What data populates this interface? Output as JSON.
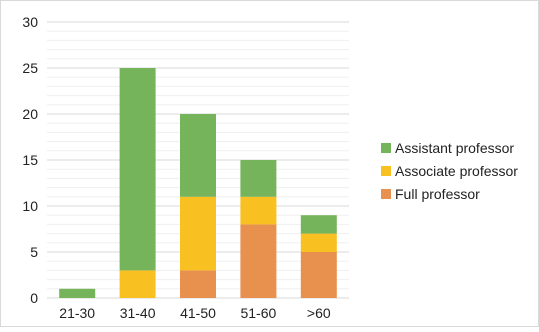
{
  "chart_data": {
    "type": "bar",
    "stacked": true,
    "title": "",
    "xlabel": "",
    "ylabel": "",
    "categories": [
      "21-30",
      "31-40",
      "41-50",
      "51-60",
      ">60"
    ],
    "series": [
      {
        "name": "Full professor",
        "color": "#e8914f",
        "values": [
          0,
          0,
          3,
          8,
          5
        ]
      },
      {
        "name": "Associate professor",
        "color": "#f8c021",
        "values": [
          0,
          3,
          8,
          3,
          2
        ]
      },
      {
        "name": "Assistant professor",
        "color": "#76b45c",
        "values": [
          1,
          22,
          9,
          4,
          2
        ]
      }
    ],
    "ylim": [
      0,
      30
    ],
    "yticks": [
      "0",
      "5",
      "10",
      "15",
      "20",
      "25",
      "30"
    ],
    "grid": true,
    "legend": {
      "position": "right",
      "entries": [
        "Assistant professor",
        "Associate professor",
        "Full professor"
      ]
    }
  }
}
